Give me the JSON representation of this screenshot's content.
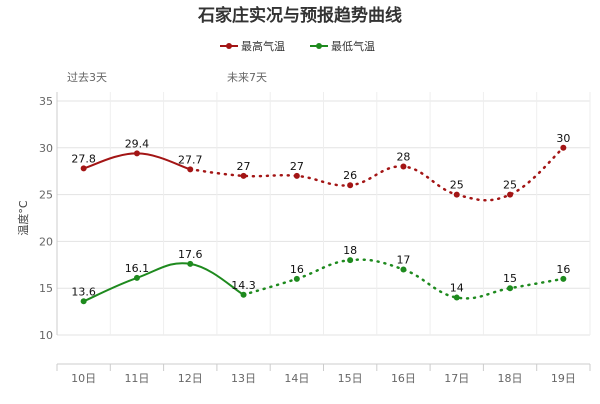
{
  "chart_data": {
    "type": "line",
    "title": "石家庄实况与预报趋势曲线",
    "ylabel": "温度°C",
    "xlabel": "",
    "ylim": [
      10,
      35
    ],
    "yticks": [
      10,
      15,
      20,
      25,
      30,
      35
    ],
    "categories": [
      "10日",
      "11日",
      "12日",
      "13日",
      "14日",
      "15日",
      "16日",
      "17日",
      "18日",
      "19日"
    ],
    "period_labels": {
      "past": "过去3天",
      "future": "未来7天"
    },
    "legend_position": "top-center",
    "grid": true,
    "series": [
      {
        "name": "最高气温",
        "color": "#a31515",
        "values": [
          27.8,
          29.4,
          27.7,
          27,
          27,
          26,
          28,
          25,
          25,
          30
        ],
        "observed_count": 3
      },
      {
        "name": "最低气温",
        "color": "#1e8a1e",
        "values": [
          13.6,
          16.1,
          17.6,
          14.3,
          16,
          18,
          17,
          14,
          15,
          16
        ],
        "observed_count": 4
      }
    ]
  }
}
